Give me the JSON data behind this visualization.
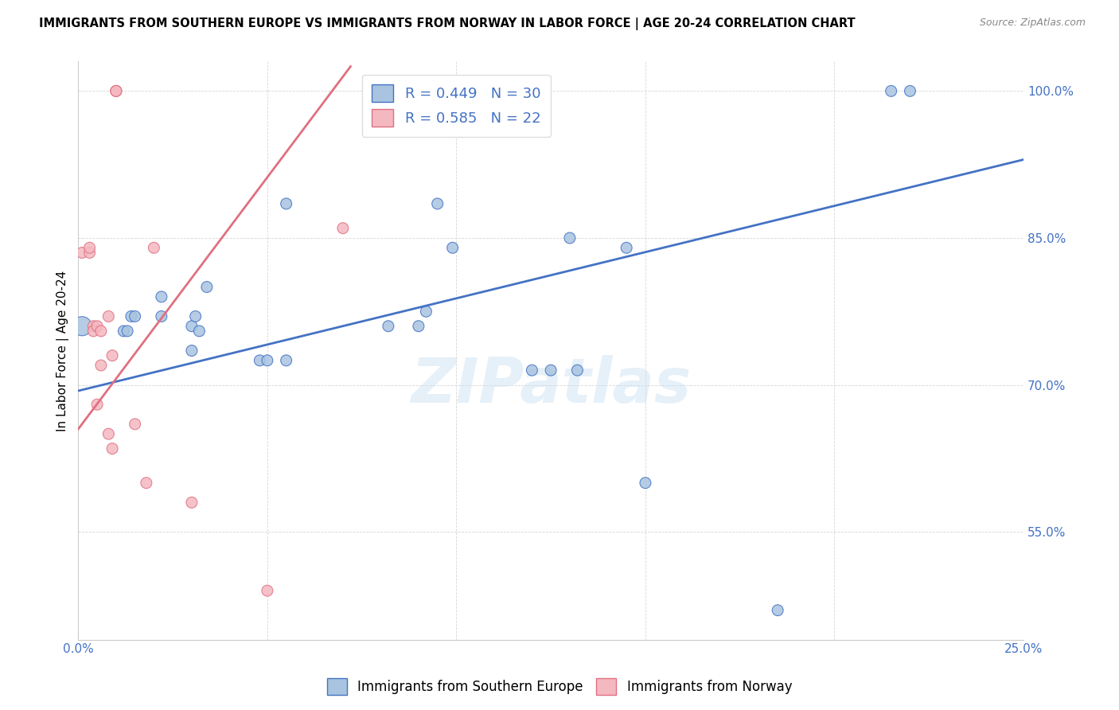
{
  "title": "IMMIGRANTS FROM SOUTHERN EUROPE VS IMMIGRANTS FROM NORWAY IN LABOR FORCE | AGE 20-24 CORRELATION CHART",
  "source": "Source: ZipAtlas.com",
  "ylabel": "In Labor Force | Age 20-24",
  "xlim": [
    0.0,
    0.25
  ],
  "ylim": [
    0.44,
    1.03
  ],
  "xtick_positions": [
    0.0,
    0.05,
    0.1,
    0.15,
    0.2,
    0.25
  ],
  "xticklabels": [
    "0.0%",
    "",
    "",
    "",
    "",
    "25.0%"
  ],
  "yticks_right": [
    0.55,
    0.7,
    0.85,
    1.0
  ],
  "yticklabels_right": [
    "55.0%",
    "70.0%",
    "85.0%",
    "100.0%"
  ],
  "R_blue": 0.449,
  "N_blue": 30,
  "R_pink": 0.585,
  "N_pink": 22,
  "legend_label_blue": "Immigrants from Southern Europe",
  "legend_label_pink": "Immigrants from Norway",
  "blue_color": "#a8c4e0",
  "pink_color": "#f4b8c1",
  "blue_line_color": "#4472c4",
  "pink_line_color": "#e07080",
  "text_color_blue": "#4472c4",
  "watermark": "ZIPatlas",
  "blue_scatter_x": [
    0.001,
    0.012,
    0.013,
    0.014,
    0.015,
    0.022,
    0.022,
    0.03,
    0.03,
    0.031,
    0.032,
    0.034,
    0.048,
    0.05,
    0.055,
    0.055,
    0.082,
    0.09,
    0.092,
    0.095,
    0.099,
    0.12,
    0.125,
    0.13,
    0.132,
    0.145,
    0.15,
    0.185,
    0.215,
    0.22
  ],
  "blue_scatter_y": [
    0.76,
    0.755,
    0.755,
    0.77,
    0.77,
    0.79,
    0.77,
    0.76,
    0.735,
    0.77,
    0.755,
    0.8,
    0.725,
    0.725,
    0.725,
    0.885,
    0.76,
    0.76,
    0.775,
    0.885,
    0.84,
    0.715,
    0.715,
    0.85,
    0.715,
    0.84,
    0.6,
    0.47,
    1.0,
    1.0
  ],
  "blue_scatter_size": [
    300,
    100,
    100,
    100,
    100,
    100,
    100,
    100,
    100,
    100,
    100,
    100,
    100,
    100,
    100,
    100,
    100,
    100,
    100,
    100,
    100,
    100,
    100,
    100,
    100,
    100,
    100,
    100,
    100,
    100
  ],
  "pink_scatter_x": [
    0.001,
    0.003,
    0.003,
    0.004,
    0.004,
    0.005,
    0.005,
    0.006,
    0.006,
    0.008,
    0.008,
    0.009,
    0.009,
    0.01,
    0.01,
    0.01,
    0.015,
    0.018,
    0.02,
    0.03,
    0.05,
    0.07
  ],
  "pink_scatter_y": [
    0.835,
    0.835,
    0.84,
    0.76,
    0.755,
    0.76,
    0.68,
    0.755,
    0.72,
    0.77,
    0.65,
    0.73,
    0.635,
    1.0,
    1.0,
    1.0,
    0.66,
    0.6,
    0.84,
    0.58,
    0.49,
    0.86
  ],
  "pink_scatter_size": [
    100,
    100,
    100,
    100,
    100,
    100,
    100,
    100,
    100,
    100,
    100,
    100,
    100,
    100,
    100,
    100,
    100,
    100,
    100,
    100,
    100,
    100
  ],
  "blue_line_x": [
    0.0,
    0.25
  ],
  "blue_line_y": [
    0.694,
    0.93
  ],
  "pink_line_x": [
    0.0,
    0.072
  ],
  "pink_line_y": [
    0.655,
    1.025
  ]
}
